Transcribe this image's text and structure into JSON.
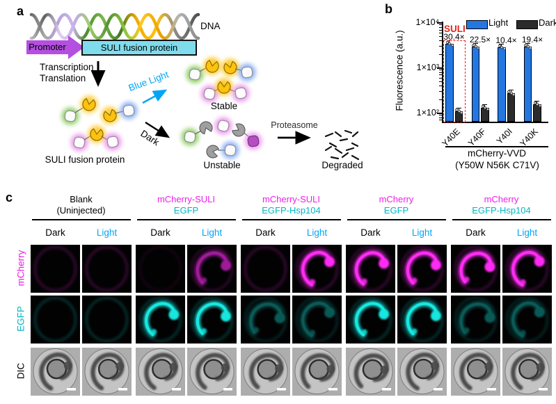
{
  "figure": {
    "panel_a_label": "a",
    "panel_b_label": "b",
    "panel_c_label": "c"
  },
  "panel_a": {
    "dna_label": "DNA",
    "promoter_label": "Promoter",
    "suli_gene_label": "SULI fusion protein",
    "transcription_label": "Transcription",
    "translation_label": "Translation",
    "blue_light_label": "Blue Light",
    "dark_label": "Dark",
    "protein_label": "SULI fusion protein",
    "stable_label": "Stable",
    "unstable_label": "Unstable",
    "proteasome_label": "Proteasome",
    "degraded_label": "Degraded",
    "colors": {
      "promoter": "#b44fe0",
      "suli_box": "#7fdcec",
      "blue_light": "#00a5f5"
    }
  },
  "chart_data": {
    "type": "bar",
    "ylabel": "Fluorescence (a.u.)",
    "yscale": "log",
    "ylim": [
      65,
      10000
    ],
    "yticks": [
      100,
      1000,
      10000
    ],
    "ytick_labels": [
      "1×10²",
      "1×10³",
      "1×10⁴"
    ],
    "categories": [
      "Y40E",
      "Y40F",
      "Y40I",
      "Y40K"
    ],
    "series": [
      {
        "name": "Light",
        "color": "#2477e0",
        "values": [
          3400,
          2990,
          2850,
          3000
        ]
      },
      {
        "name": "Dark",
        "color": "#2b2b2b",
        "values": [
          112,
          133,
          274,
          155
        ]
      }
    ],
    "fold_labels": [
      "30.4×",
      "22.5×",
      "10.4×",
      "19.4×"
    ],
    "replicate_dots": 3,
    "legend_position": "top",
    "grid": false,
    "highlight": {
      "label": "SULI",
      "category": "Y40E",
      "color": "#e8231a"
    },
    "group_label_line1": "mCherry-VVD",
    "group_label_line2": "(Y50W N56K C71V)"
  },
  "panel_c": {
    "groups": [
      {
        "line1": "Blank",
        "line2": "(Uninjected)",
        "color1": "#000000",
        "color2": "#000000"
      },
      {
        "line1": "mCherry-SULI",
        "line2": "EGFP",
        "color1": "#ee1fe8",
        "color2": "#00b7c4"
      },
      {
        "line1": "mCherry-SULI",
        "line2": "EGFP-Hsp104",
        "color1": "#ee1fe8",
        "color2": "#00b7c4"
      },
      {
        "line1": "mCherry",
        "line2": "EGFP",
        "color1": "#ee1fe8",
        "color2": "#00b7c4"
      },
      {
        "line1": "mCherry",
        "line2": "EGFP-Hsp104",
        "color1": "#ee1fe8",
        "color2": "#00b7c4"
      }
    ],
    "condition_labels": {
      "dark": "Dark",
      "light": "Light",
      "light_color": "#00a5f5"
    },
    "rows": [
      {
        "label": "mCherry",
        "color": "#ee1fe8",
        "channel": "magenta",
        "scale_bar": false,
        "cells": [
          "ring-faint",
          "ring-faint",
          "blank",
          "embryo-medium",
          "ring-faint",
          "embryo-bright",
          "embryo-bright",
          "embryo-bright",
          "embryo-bright",
          "embryo-bright"
        ]
      },
      {
        "label": "EGFP",
        "color": "#00b7c4",
        "channel": "cyan",
        "scale_bar": false,
        "cells": [
          "ring-faint",
          "ring-faint",
          "embryo-bright",
          "embryo-bright",
          "embryo-dim",
          "embryo-dim",
          "embryo-bright",
          "embryo-bright",
          "embryo-dim",
          "embryo-dim"
        ]
      },
      {
        "label": "DIC",
        "color": "#000000",
        "channel": "dic",
        "scale_bar": true,
        "cells": [
          "dic",
          "dic",
          "dic",
          "dic",
          "dic",
          "dic",
          "dic",
          "dic",
          "dic",
          "dic"
        ]
      }
    ]
  }
}
